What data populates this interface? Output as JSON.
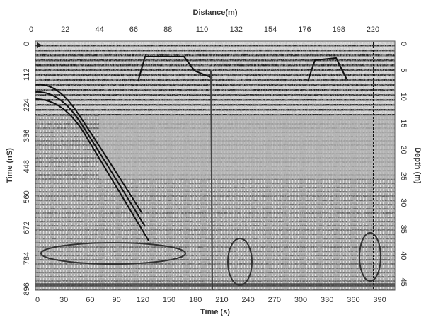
{
  "figure": {
    "top_axis": {
      "label": "Distance(m)",
      "ticks": [
        0,
        22,
        44,
        66,
        88,
        110,
        132,
        154,
        176,
        198,
        220
      ]
    },
    "left_axis": {
      "label": "Time (nS)",
      "ticks": [
        0,
        112,
        224,
        336,
        448,
        560,
        672,
        784,
        896
      ]
    },
    "right_axis": {
      "label": "Depth (m)",
      "ticks": [
        0,
        5,
        10,
        15,
        20,
        25,
        30,
        35,
        40,
        45
      ]
    },
    "bottom_axis": {
      "label": "Time (s)",
      "ticks": [
        0,
        30,
        60,
        90,
        120,
        150,
        180,
        210,
        240,
        270,
        300,
        330,
        360,
        390
      ]
    }
  }
}
